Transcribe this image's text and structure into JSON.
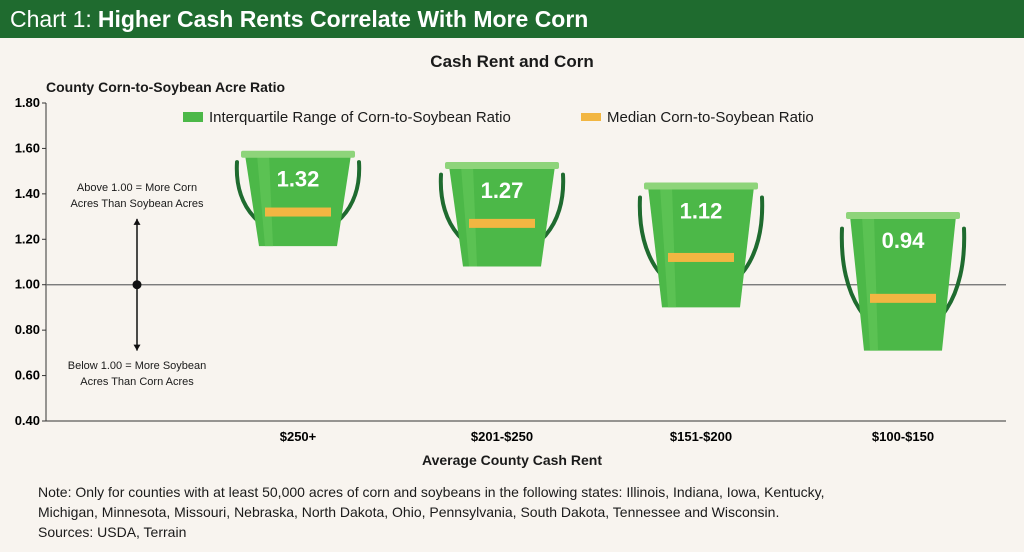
{
  "header": {
    "prefix": "Chart 1:",
    "title": "Higher Cash Rents Correlate With More Corn"
  },
  "note": {
    "lines": [
      "Note: Only for counties with at least 50,000 acres of corn and soybeans in the following states: Illinois, Indiana, Iowa, Kentucky,",
      "Michigan, Minnesota, Missouri, Nebraska, North Dakota, Ohio, Pennsylvania, South Dakota, Tennessee and Wisconsin.",
      "Sources: USDA, Terrain"
    ]
  },
  "colors": {
    "header_bg": "#1f6b2f",
    "bucket": "#4cb848",
    "bucket_light": "#8ed47a",
    "handle": "#1f6b2f",
    "median": "#f2b642"
  },
  "chart_data": {
    "type": "bar",
    "title": "Cash Rent and Corn",
    "xlabel": "Average County Cash Rent",
    "ylabel": "County Corn-to-Soybean Acre Ratio",
    "ylim": [
      0.4,
      1.8
    ],
    "yticks": [
      "0.40",
      "0.60",
      "0.80",
      "1.00",
      "1.20",
      "1.40",
      "1.60",
      "1.80"
    ],
    "reference_line": 1.0,
    "categories": [
      "$250+",
      "$201-$250",
      "$151-$200",
      "$100-$150"
    ],
    "series": [
      {
        "name": "Interquartile Range of Corn-to-Soybean Ratio",
        "q1": [
          1.17,
          1.08,
          0.9,
          0.71
        ],
        "q3": [
          1.59,
          1.54,
          1.45,
          1.32
        ]
      },
      {
        "name": "Median Corn-to-Soybean Ratio",
        "values": [
          1.32,
          1.27,
          1.12,
          0.94
        ]
      }
    ],
    "value_labels": [
      "1.32",
      "1.27",
      "1.12",
      "0.94"
    ],
    "legend_position": "top",
    "annotations": {
      "above": [
        "Above 1.00 = More Corn",
        "Acres Than Soybean Acres"
      ],
      "below": [
        "Below 1.00 = More Soybean",
        "Acres Than Corn Acres"
      ]
    }
  }
}
